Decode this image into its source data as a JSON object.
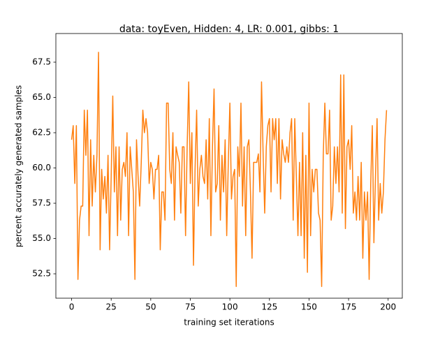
{
  "chart_data": {
    "type": "line",
    "title": "data: toyEven, Hidden: 4, LR: 0.001, gibbs: 1",
    "x_label": "training set iterations",
    "y_label": "percent accurately generated samples",
    "xlim": [
      -9.95,
      208.95
    ],
    "ylim": [
      50.77,
      69.53
    ],
    "xticks": [
      0,
      25,
      50,
      75,
      100,
      125,
      150,
      175,
      200
    ],
    "yticks": [
      52.5,
      {
        "value": 55,
        "label": "55.0"
      },
      57.5,
      {
        "value": 60,
        "label": "60.0"
      },
      62.5,
      {
        "value": 65,
        "label": "65.0"
      },
      67.5
    ],
    "series": [
      {
        "color": "#ff7f0e",
        "x": [
          0,
          1,
          2,
          3,
          4,
          5,
          6,
          7,
          8,
          9,
          10,
          11,
          12,
          13,
          14,
          15,
          16,
          17,
          18,
          19,
          20,
          21,
          22,
          23,
          24,
          25,
          26,
          27,
          28,
          29,
          30,
          31,
          32,
          33,
          34,
          35,
          36,
          37,
          38,
          39,
          40,
          41,
          42,
          43,
          44,
          45,
          46,
          47,
          48,
          49,
          50,
          51,
          52,
          53,
          54,
          55,
          56,
          57,
          58,
          59,
          60,
          61,
          62,
          63,
          64,
          65,
          66,
          67,
          68,
          69,
          70,
          71,
          72,
          73,
          74,
          75,
          76,
          77,
          78,
          79,
          80,
          81,
          82,
          83,
          84,
          85,
          86,
          87,
          88,
          89,
          90,
          91,
          92,
          93,
          94,
          95,
          96,
          97,
          98,
          99,
          100,
          101,
          102,
          103,
          104,
          105,
          106,
          107,
          108,
          109,
          110,
          111,
          112,
          113,
          114,
          115,
          116,
          117,
          118,
          119,
          120,
          121,
          122,
          123,
          124,
          125,
          126,
          127,
          128,
          129,
          130,
          131,
          132,
          133,
          134,
          135,
          136,
          137,
          138,
          139,
          140,
          141,
          142,
          143,
          144,
          145,
          146,
          147,
          148,
          149,
          150,
          151,
          152,
          153,
          154,
          155,
          156,
          157,
          158,
          159,
          160,
          161,
          162,
          163,
          164,
          165,
          166,
          167,
          168,
          169,
          170,
          171,
          172,
          173,
          174,
          175,
          176,
          177,
          178,
          179,
          180,
          181,
          182,
          183,
          184,
          185,
          186,
          187,
          188,
          189,
          190,
          191,
          192,
          193,
          194,
          195,
          196,
          197,
          198,
          199
        ],
        "values": [
          62,
          63,
          58.9,
          63,
          52.1,
          56.3,
          57.3,
          57.3,
          64.1,
          60.9,
          64.1,
          55.2,
          62,
          57.3,
          60.9,
          58.3,
          60.9,
          68.2,
          54.2,
          59.9,
          57.8,
          59.4,
          56.8,
          60.9,
          54.2,
          59.4,
          65.1,
          58.3,
          61.5,
          55.2,
          61.5,
          56.3,
          59.9,
          60.4,
          59.4,
          62.5,
          55.2,
          61.5,
          59.9,
          58.3,
          52.1,
          62,
          59.4,
          57.3,
          60.4,
          64.1,
          62.5,
          63.5,
          62.5,
          58.9,
          60.4,
          59.9,
          57.8,
          59.9,
          59.9,
          60.9,
          54.2,
          58.3,
          58.3,
          56.3,
          64.6,
          64.6,
          59.9,
          58.9,
          62.5,
          56.3,
          61.5,
          60.9,
          60.4,
          56.8,
          61.5,
          61.5,
          55.2,
          61.5,
          66.1,
          58.9,
          62.5,
          53.1,
          59.9,
          64.1,
          57.3,
          59.9,
          60.9,
          59.4,
          58.9,
          62,
          57.8,
          63.5,
          55.2,
          61.5,
          65.6,
          58.3,
          58.9,
          63,
          56.3,
          60.9,
          58.3,
          62,
          55.2,
          60.4,
          64.6,
          57.8,
          59.4,
          59.9,
          51.6,
          61.5,
          59.4,
          64.6,
          57.3,
          61.5,
          55.2,
          61.5,
          62,
          58.3,
          53.6,
          60.4,
          60.4,
          60.4,
          61,
          58.3,
          66.1,
          61,
          56.8,
          61.5,
          63,
          63.5,
          58.3,
          63.5,
          62,
          63.5,
          58.9,
          63.5,
          57.8,
          62,
          61,
          60.4,
          61.5,
          60.4,
          62.5,
          63.5,
          56.3,
          63.5,
          59.4,
          55.2,
          60.4,
          55.2,
          62.5,
          53.6,
          60.9,
          52.6,
          64.6,
          55.2,
          59.9,
          58.3,
          59.9,
          59.9,
          56.8,
          56.3,
          51.6,
          60.9,
          64.6,
          61,
          61,
          64.1,
          56.3,
          57.3,
          61.5,
          58.9,
          61.5,
          58.3,
          66.6,
          56.8,
          66.6,
          55.7,
          61.5,
          62,
          59.9,
          63,
          56.8,
          58.3,
          56.3,
          59.4,
          56.3,
          60.4,
          53.6,
          58.3,
          56.3,
          58.3,
          52.1,
          58.9,
          63,
          54.7,
          59.4,
          63.5,
          56.3,
          58.9,
          56.8,
          58.3,
          62,
          64.1
        ]
      }
    ]
  }
}
